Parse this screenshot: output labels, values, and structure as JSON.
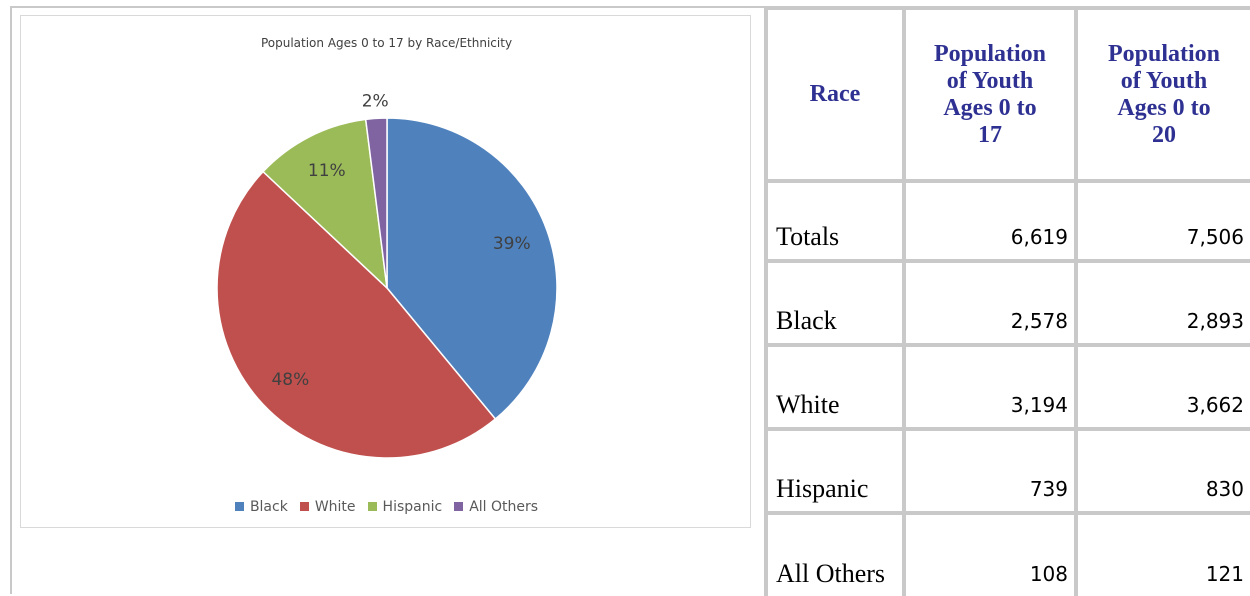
{
  "chart_data": {
    "type": "pie",
    "title": "Population Ages 0 to 17 by Race/Ethnicity",
    "categories": [
      "Black",
      "White",
      "Hispanic",
      "All Others"
    ],
    "values": [
      39,
      48,
      11,
      2
    ],
    "labels": [
      "39%",
      "48%",
      "11%",
      "2%"
    ],
    "colors": [
      "#4f81bd",
      "#c0504d",
      "#9bbb59",
      "#8064a2"
    ],
    "legend": "bottom"
  },
  "table": {
    "headers": [
      "Race",
      "Population of Youth Ages 0 to 17",
      "Population of Youth Ages 0 to 20"
    ],
    "rows": [
      {
        "race": "Totals",
        "ages_0_17": "6,619",
        "ages_0_20": "7,506"
      },
      {
        "race": "Black",
        "ages_0_17": "2,578",
        "ages_0_20": "2,893"
      },
      {
        "race": "White",
        "ages_0_17": "3,194",
        "ages_0_20": "3,662"
      },
      {
        "race": "Hispanic",
        "ages_0_17": "739",
        "ages_0_20": "830"
      },
      {
        "race": "All Others",
        "ages_0_17": "108",
        "ages_0_20": "121"
      }
    ]
  }
}
